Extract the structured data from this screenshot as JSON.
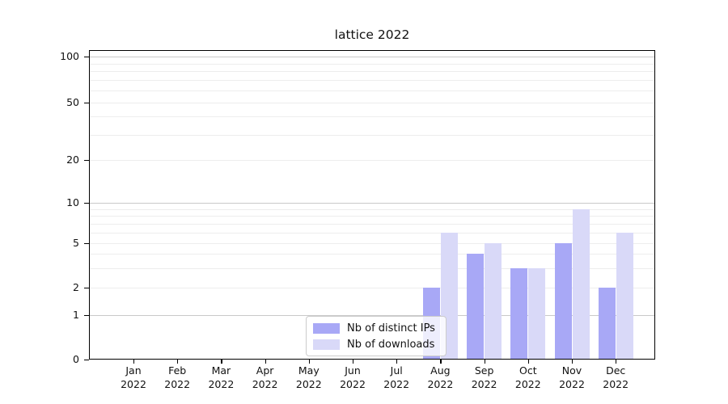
{
  "figure": {
    "title": "lattice 2022"
  },
  "chart_data": {
    "type": "bar",
    "title": "lattice 2022",
    "categories": [
      "Jan 2022",
      "Feb 2022",
      "Mar 2022",
      "Apr 2022",
      "May 2022",
      "Jun 2022",
      "Jul 2022",
      "Aug 2022",
      "Sep 2022",
      "Oct 2022",
      "Nov 2022",
      "Dec 2022"
    ],
    "series": [
      {
        "name": "Nb of distinct IPs",
        "color": "#a8a8f6",
        "values": [
          0,
          0,
          0,
          0,
          0,
          0,
          0,
          2,
          4,
          3,
          5,
          2
        ]
      },
      {
        "name": "Nb of downloads",
        "color": "#d9d9f8",
        "values": [
          0,
          0,
          0,
          0,
          0,
          0,
          0,
          6,
          5,
          3,
          9,
          6
        ]
      }
    ],
    "xlabel": "",
    "ylabel": "",
    "yscale": "symlog",
    "y_ticks": [
      0,
      1,
      2,
      5,
      10,
      20,
      50,
      100
    ],
    "ylim": [
      0,
      110
    ],
    "grid": "horizontal-log-minor",
    "legend_position": "lower center",
    "colors": {
      "spine": "#000000",
      "grid_major": "#c9c9c9",
      "grid_minor": "#ededed",
      "background": "#ffffff"
    }
  }
}
